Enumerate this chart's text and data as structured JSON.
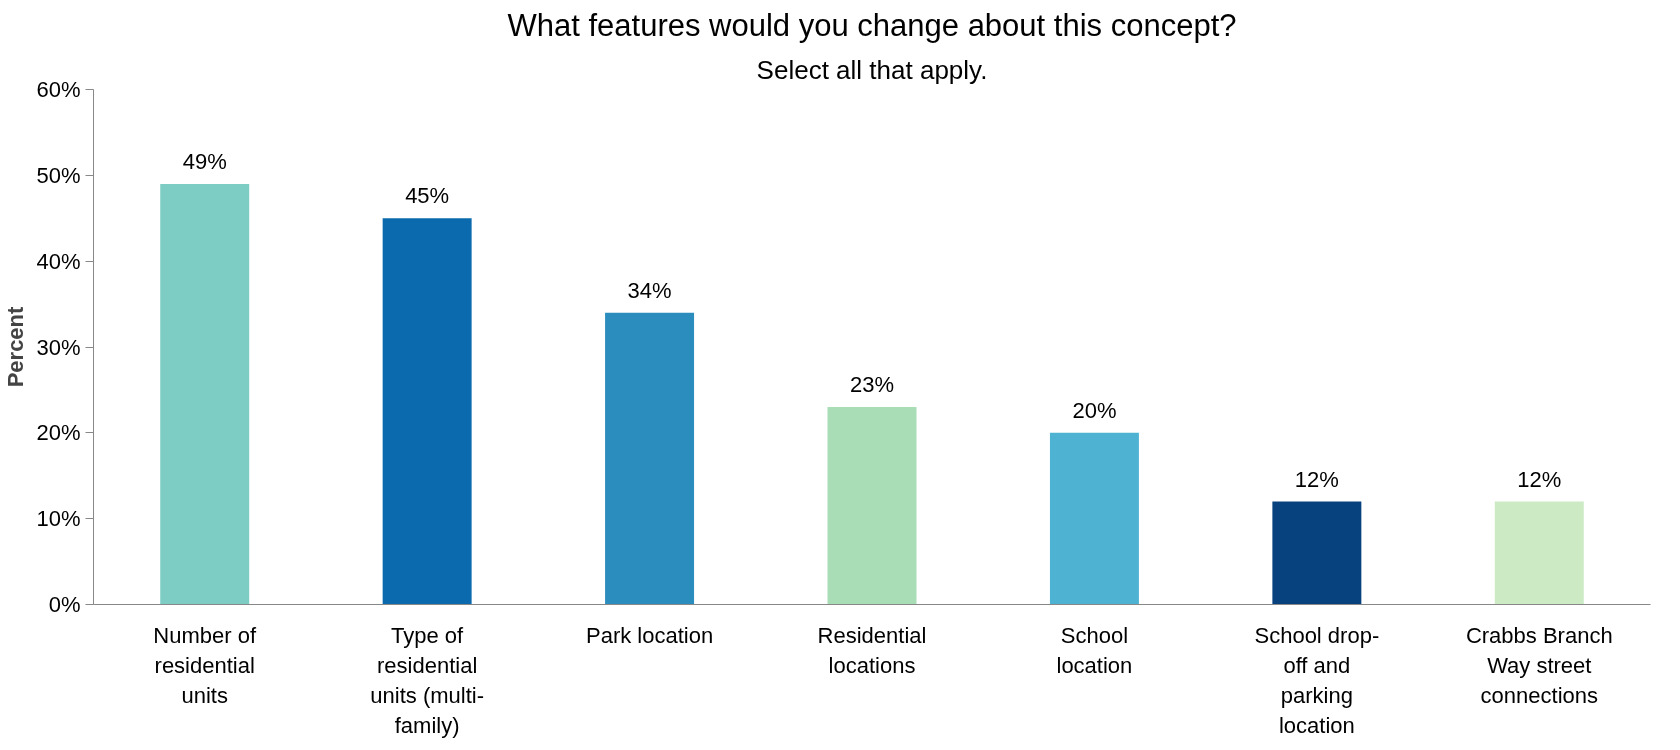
{
  "chart_data": {
    "type": "bar",
    "title": "What features would you change about this concept?",
    "subtitle": "Select all that apply.",
    "ylabel": "Percent",
    "categories": [
      "Number of residential units",
      "Type of residential units (multi-family)",
      "Park location",
      "Residential locations",
      "School location",
      "School drop-off and parking location",
      "Crabbs Branch Way street connections"
    ],
    "values": [
      49,
      45,
      34,
      23,
      20,
      12,
      12
    ],
    "colors": [
      "#7ecdc4",
      "#0b6aad",
      "#2b8cbe",
      "#a8ddb5",
      "#4eb3d3",
      "#08427e",
      "#ccebc5"
    ],
    "ylim": [
      0,
      60
    ],
    "yticks": [
      {
        "value": 0,
        "label": "0%"
      },
      {
        "value": 10,
        "label": "10%"
      },
      {
        "value": 20,
        "label": "20%"
      },
      {
        "value": 30,
        "label": "30%"
      },
      {
        "value": 40,
        "label": "40%"
      },
      {
        "value": 50,
        "label": "50%"
      },
      {
        "value": 60,
        "label": "60%"
      }
    ],
    "value_labels": [
      "49%",
      "45%",
      "34%",
      "23%",
      "20%",
      "12%",
      "12%"
    ],
    "grid": false
  }
}
